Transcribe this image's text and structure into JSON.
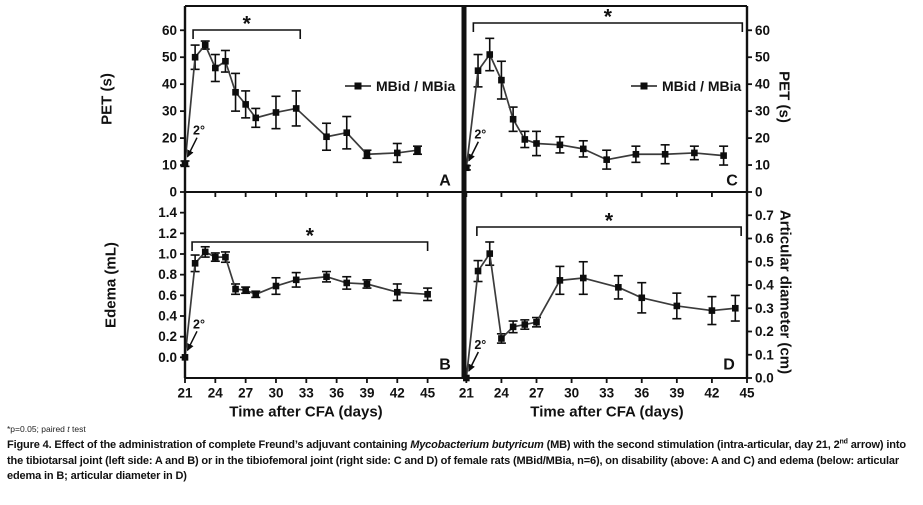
{
  "figure": {
    "footnote": {
      "pre": "*p=0.05; paired ",
      "italic": "t",
      "post": " test"
    },
    "caption": {
      "label": "Figure 4.",
      "seg1": " Effect of the administration of complete Freund’s adjuvant containing ",
      "italic1": "Mycobacterium butyricum",
      "seg2": " (MB) with the second stimulation (intra-articular, day 21, 2",
      "sup": "nd",
      "seg3": " arrow) into the tibiotarsal joint (left side: A and B) or in the tibiofemoral joint (right side: C and D) of female rats (MBid/MBia, n=6), on disability (above: A and C) and edema (below: articular edema in B; articular diameter in D)"
    }
  },
  "colors": {
    "line": "#3b3b3b",
    "marker": "#0d0d0d",
    "axis": "#111111",
    "text": "#111111",
    "background": "#ffffff"
  },
  "chart_data": [
    {
      "id": "A",
      "type": "line",
      "position": "top-left",
      "panel_label": "A",
      "ylabel": "PET (s)",
      "yaxis_side": "left",
      "ylim": [
        0,
        69
      ],
      "xlim": [
        21,
        48.6
      ],
      "yticks": [
        0,
        10,
        20,
        30,
        40,
        50,
        60
      ],
      "ytick_labels": [
        "0",
        "10",
        "20",
        "30",
        "40",
        "50",
        "60"
      ],
      "xticks": [
        21,
        24,
        27,
        30,
        33,
        36,
        39,
        42,
        45
      ],
      "legend": "MBid / MBia",
      "annotation": "2°",
      "sig_bracket": {
        "from": 21.8,
        "to": 32.4,
        "label": "*"
      },
      "series": [
        {
          "name": "MBid / MBia",
          "x": [
            21,
            22,
            23,
            24,
            25,
            26,
            27,
            28,
            30,
            32,
            35,
            37,
            39,
            42,
            44
          ],
          "y": [
            10.5,
            50,
            54.5,
            46,
            48.5,
            37,
            32.5,
            27.5,
            29.5,
            31,
            20.5,
            22,
            14,
            14.5,
            15.5
          ],
          "err": [
            1,
            4.5,
            1.5,
            5,
            4,
            7,
            5,
            3.5,
            6,
            6.5,
            5,
            6,
            1.5,
            3.5,
            1.5
          ]
        }
      ]
    },
    {
      "id": "B",
      "type": "line",
      "position": "bottom-left",
      "panel_label": "B",
      "ylabel": "Edema (mL)",
      "yaxis_side": "left",
      "xlabel": "Time after CFA (days)",
      "ylim": [
        -0.2,
        1.6
      ],
      "xlim": [
        21,
        48.6
      ],
      "yticks": [
        0.0,
        0.2,
        0.4,
        0.6,
        0.8,
        1.0,
        1.2,
        1.4
      ],
      "ytick_labels": [
        "0.0",
        "0.2",
        "0.4",
        "0.6",
        "0.8",
        "1.0",
        "1.2",
        "1.4"
      ],
      "xticks": [
        21,
        24,
        27,
        30,
        33,
        36,
        39,
        42,
        45
      ],
      "legend": null,
      "annotation": "2°",
      "sig_bracket": {
        "from": 21.7,
        "to": 45.0,
        "label": "*"
      },
      "series": [
        {
          "name": "MBid / MBia",
          "x": [
            21,
            22,
            23,
            24,
            25,
            26,
            27,
            28,
            30,
            32,
            35,
            37,
            39,
            42,
            45
          ],
          "y": [
            0.0,
            0.91,
            1.02,
            0.97,
            0.97,
            0.66,
            0.65,
            0.61,
            0.69,
            0.75,
            0.78,
            0.72,
            0.71,
            0.63,
            0.61
          ],
          "err": [
            0,
            0.08,
            0.05,
            0.04,
            0.05,
            0.05,
            0.03,
            0.03,
            0.08,
            0.07,
            0.05,
            0.06,
            0.04,
            0.08,
            0.06
          ]
        }
      ]
    },
    {
      "id": "C",
      "type": "line",
      "position": "top-right",
      "panel_label": "C",
      "ylabel": "PET (s)",
      "yaxis_side": "right",
      "ylim": [
        0,
        69
      ],
      "xlim": [
        20.8,
        45
      ],
      "yticks": [
        0,
        10,
        20,
        30,
        40,
        50,
        60
      ],
      "ytick_labels": [
        "0",
        "10",
        "20",
        "30",
        "40",
        "50",
        "60"
      ],
      "xticks": [
        21,
        24,
        27,
        30,
        33,
        36,
        39,
        42,
        45
      ],
      "legend": "MBid / MBia",
      "annotation": "2°",
      "sig_bracket": {
        "from": 21.6,
        "to": 44.6,
        "label": "*"
      },
      "series": [
        {
          "name": "MBid / MBia",
          "x": [
            21,
            22,
            23,
            24,
            25,
            26,
            27,
            29,
            31,
            33,
            35.5,
            38,
            40.5,
            43
          ],
          "y": [
            9,
            45,
            51,
            41.5,
            27,
            19.5,
            18,
            17.5,
            16,
            12,
            14,
            14,
            14.5,
            13.5
          ],
          "err": [
            0.8,
            6,
            6,
            7,
            4.5,
            3,
            4.5,
            3,
            3,
            3.5,
            3,
            3.5,
            2.5,
            3.5
          ]
        }
      ]
    },
    {
      "id": "D",
      "type": "line",
      "position": "bottom-right",
      "panel_label": "D",
      "ylabel": "Articular diameter (cm)",
      "yaxis_side": "right",
      "xlabel": "Time after CFA (days)",
      "ylim": [
        0,
        0.8
      ],
      "xlim": [
        20.8,
        45
      ],
      "yticks": [
        0.0,
        0.1,
        0.2,
        0.3,
        0.4,
        0.5,
        0.6,
        0.7
      ],
      "ytick_labels": [
        "0.0",
        "0.1",
        "0.2",
        "0.3",
        "0.4",
        "0.5",
        "0.6",
        "0.7"
      ],
      "xticks": [
        21,
        24,
        27,
        30,
        33,
        36,
        39,
        42,
        45
      ],
      "legend": null,
      "annotation": "2°",
      "sig_bracket": {
        "from": 21.9,
        "to": 44.5,
        "label": "*"
      },
      "series": [
        {
          "name": "MBid / MBia",
          "x": [
            21,
            22,
            23,
            24,
            25,
            26,
            27,
            29,
            31,
            34,
            36,
            39,
            42,
            44
          ],
          "y": [
            0.0,
            0.46,
            0.535,
            0.17,
            0.22,
            0.23,
            0.24,
            0.42,
            0.43,
            0.39,
            0.345,
            0.31,
            0.29,
            0.3
          ],
          "err": [
            0,
            0.045,
            0.05,
            0.02,
            0.025,
            0.02,
            0.02,
            0.06,
            0.07,
            0.05,
            0.065,
            0.055,
            0.06,
            0.055
          ]
        }
      ]
    }
  ]
}
